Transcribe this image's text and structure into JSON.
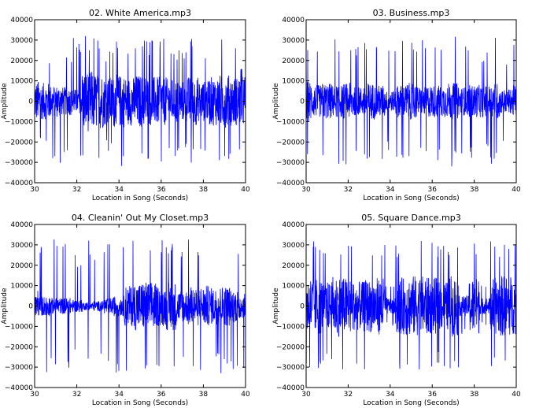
{
  "chart_data": [
    {
      "type": "line",
      "title": "02. White America.mp3",
      "xlabel": "Location in Song (Seconds)",
      "ylabel": "Amplitude",
      "xlim": [
        30,
        40
      ],
      "ylim": [
        -40000,
        40000
      ],
      "xticks": [
        "30",
        "32",
        "34",
        "36",
        "38",
        "40"
      ],
      "yticks": [
        "40000",
        "30000",
        "20000",
        "10000",
        "0",
        "−10000",
        "−20000",
        "−30000",
        "−40000"
      ],
      "color": "#0000ff",
      "envelope_bin_seconds": 0.5,
      "dense_amplitude": [
        10000,
        9000,
        8000,
        7000,
        6000,
        15000,
        14000,
        12000,
        13000,
        12000,
        13000,
        12000,
        12000,
        11000,
        10000,
        12000,
        10000,
        12000,
        13000,
        12000,
        13000
      ],
      "peak_amplitude": [
        32000,
        22000,
        32000,
        25000,
        32000,
        32000,
        32000,
        25000,
        32000,
        28000,
        30000,
        30000,
        32000,
        28000,
        25000,
        31000,
        25000,
        32000,
        32000,
        31000,
        20000
      ]
    },
    {
      "type": "line",
      "title": "03. Business.mp3",
      "xlabel": "Location in Song (Seconds)",
      "ylabel": "Amplitude",
      "xlim": [
        30,
        40
      ],
      "ylim": [
        -40000,
        40000
      ],
      "xticks": [
        "30",
        "32",
        "34",
        "36",
        "38",
        "40"
      ],
      "yticks": [
        "40000",
        "30000",
        "20000",
        "10000",
        "0",
        "−10000",
        "−20000",
        "−30000",
        "−40000"
      ],
      "color": "#0000ff",
      "envelope_bin_seconds": 0.5,
      "dense_amplitude": [
        10000,
        8000,
        9000,
        8000,
        9000,
        7000,
        9000,
        8000,
        5000,
        8000,
        9000,
        7000,
        8000,
        8000,
        9000,
        7000,
        8000,
        8000,
        9000,
        6000,
        8000
      ],
      "peak_amplitude": [
        32000,
        30000,
        32000,
        31000,
        32000,
        30000,
        33000,
        32000,
        25000,
        32000,
        32000,
        30000,
        33000,
        30000,
        32000,
        28000,
        30000,
        25000,
        33000,
        20000,
        32000
      ]
    },
    {
      "type": "line",
      "title": "04. Cleanin' Out My Closet.mp3",
      "xlabel": "Location in Song (Seconds)",
      "ylabel": "Amplitude",
      "xlim": [
        30,
        40
      ],
      "ylim": [
        -40000,
        40000
      ],
      "xticks": [
        "30",
        "32",
        "34",
        "36",
        "38",
        "40"
      ],
      "yticks": [
        "40000",
        "30000",
        "20000",
        "10000",
        "0",
        "−10000",
        "−20000",
        "−30000",
        "−40000"
      ],
      "color": "#0000ff",
      "envelope_bin_seconds": 0.5,
      "dense_amplitude": [
        5000,
        5000,
        4000,
        4000,
        3000,
        2000,
        2500,
        4000,
        5000,
        10000,
        12000,
        12000,
        10000,
        12000,
        8000,
        10000,
        10000,
        9000,
        10000,
        8000,
        6000
      ],
      "peak_amplitude": [
        8000,
        33000,
        33000,
        33000,
        25000,
        33000,
        28000,
        33000,
        33000,
        33000,
        33000,
        30000,
        33000,
        33000,
        32000,
        33000,
        33000,
        30000,
        33000,
        33000,
        32000
      ]
    },
    {
      "type": "line",
      "title": "05. Square Dance.mp3",
      "xlabel": "Location in Song (Seconds)",
      "ylabel": "Amplitude",
      "xlim": [
        30,
        40
      ],
      "ylim": [
        -40000,
        40000
      ],
      "xticks": [
        "30",
        "32",
        "34",
        "36",
        "38",
        "40"
      ],
      "yticks": [
        "40000",
        "30000",
        "20000",
        "10000",
        "0",
        "−10000",
        "−20000",
        "−30000",
        "−40000"
      ],
      "color": "#0000ff",
      "envelope_bin_seconds": 0.5,
      "dense_amplitude": [
        15000,
        14000,
        12000,
        15000,
        14000,
        12000,
        13000,
        14000,
        4000,
        14000,
        15000,
        15000,
        14000,
        12000,
        15000,
        5000,
        14000,
        4000,
        14000,
        15000,
        14000
      ],
      "peak_amplitude": [
        33000,
        32000,
        30000,
        33000,
        32000,
        30000,
        32000,
        30000,
        10000,
        32000,
        33000,
        33000,
        32000,
        30000,
        33000,
        15000,
        32000,
        10000,
        32000,
        33000,
        32000
      ]
    }
  ]
}
